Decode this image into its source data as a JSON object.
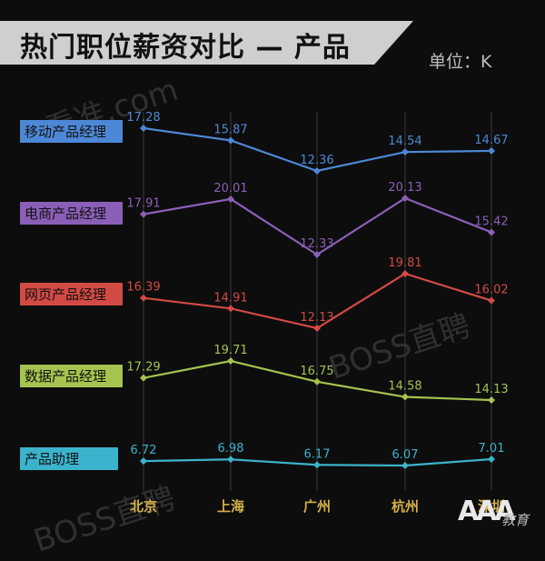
{
  "header": {
    "title": "热门职位薪资对比 — 产品",
    "unit": "单位：K"
  },
  "watermarks": [
    "看准.com",
    "BOSS直聘",
    "BOSS直聘"
  ],
  "logo": {
    "main": "AAA",
    "sub": "教育"
  },
  "colors": {
    "background": "#0d0d0d",
    "banner": "#cfcfcf",
    "gridline": "#3a3a3a",
    "x_tick_text": "#d4b048"
  },
  "chart_data": {
    "type": "line",
    "title": "热门职位薪资对比 — 产品",
    "unit": "单位：K",
    "categories": [
      "北京",
      "上海",
      "广州",
      "杭州",
      "深圳"
    ],
    "grid": {
      "vertical": true,
      "horizontal": false
    },
    "legend_placement": "left",
    "series": [
      {
        "name": "移动产品经理",
        "color": "#4d88d6",
        "values": [
          17.28,
          15.87,
          12.36,
          14.54,
          14.67
        ]
      },
      {
        "name": "电商产品经理",
        "color": "#8b5fb8",
        "values": [
          17.91,
          20.01,
          12.33,
          20.13,
          15.42
        ]
      },
      {
        "name": "网页产品经理",
        "color": "#d34a44",
        "values": [
          16.39,
          14.91,
          12.13,
          19.81,
          16.02
        ]
      },
      {
        "name": "数据产品经理",
        "color": "#a5c34f",
        "values": [
          17.29,
          19.71,
          16.75,
          14.58,
          14.13
        ]
      },
      {
        "name": "产品助理",
        "color": "#3cb3cc",
        "values": [
          6.72,
          6.98,
          6.17,
          6.07,
          7.01
        ]
      }
    ]
  }
}
